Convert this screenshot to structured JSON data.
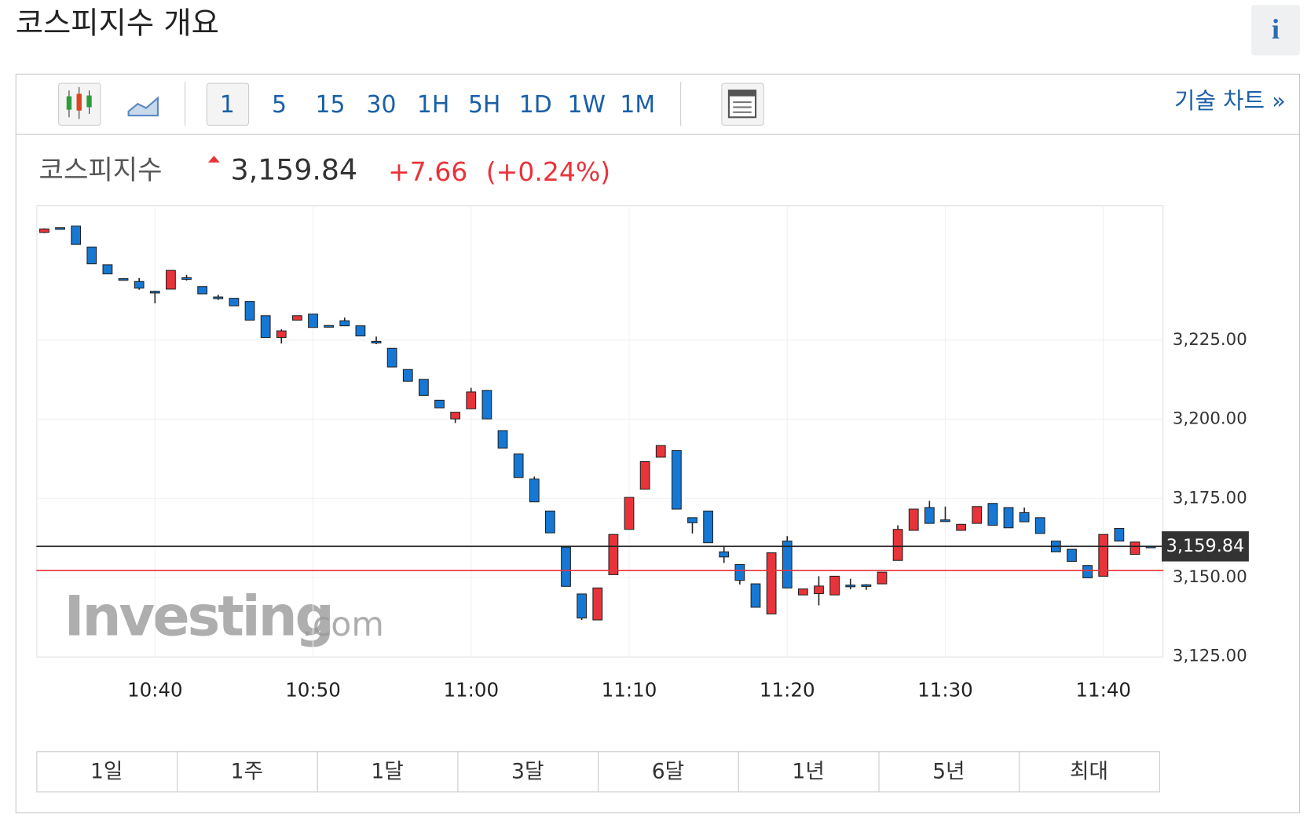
{
  "header": {
    "title": "코스피지수 개요",
    "info": "i"
  },
  "toolbar": {
    "intervals": [
      "1",
      "5",
      "15",
      "30",
      "1H",
      "5H",
      "1D",
      "1W",
      "1M"
    ],
    "tech_chart": "기술 차트 »"
  },
  "quote": {
    "name": "코스피지수",
    "price": "3,159.84",
    "change": "+7.66",
    "change_pct": "(+0.24%)"
  },
  "watermark": {
    "brand": "Investing",
    "domain": ".com"
  },
  "ranges": [
    "1일",
    "1주",
    "1달",
    "3달",
    "6달",
    "1년",
    "5년",
    "최대"
  ],
  "chart_data": {
    "type": "candlestick",
    "x": [
      "10:33",
      "10:34",
      "10:35",
      "10:36",
      "10:37",
      "10:38",
      "10:39",
      "10:40",
      "10:41",
      "10:42",
      "10:43",
      "10:44",
      "10:45",
      "10:46",
      "10:47",
      "10:48",
      "10:49",
      "10:50",
      "10:51",
      "10:52",
      "10:53",
      "10:54",
      "10:55",
      "10:56",
      "10:57",
      "10:58",
      "10:59",
      "11:00",
      "11:01",
      "11:02",
      "11:03",
      "11:04",
      "11:05",
      "11:06",
      "11:07",
      "11:08",
      "11:09",
      "11:10",
      "11:11",
      "11:12",
      "11:13",
      "11:14",
      "11:15",
      "11:16",
      "11:17",
      "11:18",
      "11:19",
      "11:20",
      "11:21",
      "11:22",
      "11:23",
      "11:24",
      "11:25",
      "11:26",
      "11:27",
      "11:28",
      "11:29",
      "11:30",
      "11:31",
      "11:32",
      "11:33",
      "11:34",
      "11:35",
      "11:36",
      "11:37",
      "11:38",
      "11:39",
      "11:40",
      "11:41",
      "11:42",
      "11:43"
    ],
    "open": [
      3259.0,
      3260.5,
      3261.0,
      3254.4,
      3248.8,
      3244.4,
      3243.5,
      3240.4,
      3241.1,
      3244.7,
      3241.9,
      3238.6,
      3238.2,
      3237.2,
      3232.7,
      3225.8,
      3231.3,
      3233.2,
      3229.6,
      3231.1,
      3229.5,
      3224.6,
      3222.4,
      3215.7,
      3212.6,
      3206.0,
      3200.1,
      3203.3,
      3209.1,
      3196.4,
      3189.0,
      3181.1,
      3171.0,
      3159.6,
      3144.8,
      3136.6,
      3150.9,
      3165.2,
      3177.9,
      3188.0,
      3190.1,
      3168.9,
      3171.0,
      3158.1,
      3154.1,
      3148.0,
      3138.5,
      3161.5,
      3144.5,
      3144.9,
      3144.5,
      3147.6,
      3147.7,
      3148.0,
      3155.4,
      3164.9,
      3172.1,
      3168.2,
      3164.9,
      3167.1,
      3173.4,
      3172.1,
      3170.5,
      3168.9,
      3161.5,
      3158.9,
      3153.8,
      3150.4,
      3165.5,
      3157.3,
      3159.9
    ],
    "high": [
      3260.3,
      3260.6,
      3261.0,
      3254.4,
      3248.8,
      3244.5,
      3244.6,
      3240.6,
      3247.0,
      3245.6,
      3241.9,
      3239.3,
      3238.2,
      3237.2,
      3232.7,
      3228.4,
      3232.7,
      3233.2,
      3229.7,
      3232.1,
      3229.5,
      3226.1,
      3222.4,
      3215.7,
      3212.6,
      3206.0,
      3202.2,
      3209.9,
      3209.1,
      3196.4,
      3189.0,
      3181.9,
      3171.0,
      3159.6,
      3144.8,
      3146.7,
      3163.6,
      3175.3,
      3186.6,
      3191.7,
      3190.1,
      3168.9,
      3171.0,
      3159.9,
      3154.1,
      3148.0,
      3157.8,
      3163.1,
      3146.4,
      3150.4,
      3150.4,
      3149.6,
      3147.9,
      3151.7,
      3166.5,
      3171.6,
      3174.2,
      3172.4,
      3166.8,
      3172.4,
      3173.4,
      3172.1,
      3172.1,
      3168.9,
      3161.5,
      3158.9,
      3153.8,
      3163.6,
      3165.5,
      3161.2,
      3159.9
    ],
    "low": [
      3258.8,
      3260.1,
      3255.2,
      3249.1,
      3245.9,
      3244.1,
      3240.9,
      3236.6,
      3241.1,
      3243.8,
      3239.6,
      3237.7,
      3235.8,
      3231.3,
      3225.8,
      3223.9,
      3231.3,
      3229.0,
      3229.3,
      3229.5,
      3226.3,
      3223.7,
      3216.5,
      3212.0,
      3207.5,
      3203.6,
      3198.8,
      3203.3,
      3200.1,
      3190.9,
      3181.6,
      3173.9,
      3164.1,
      3147.2,
      3136.6,
      3136.6,
      3150.9,
      3165.2,
      3177.9,
      3188.0,
      3171.6,
      3163.9,
      3161.0,
      3154.6,
      3147.8,
      3140.6,
      3138.5,
      3146.7,
      3144.5,
      3141.2,
      3144.5,
      3146.3,
      3146.1,
      3148.0,
      3155.4,
      3164.9,
      3167.1,
      3168.0,
      3164.9,
      3167.1,
      3166.5,
      3165.7,
      3167.6,
      3163.9,
      3158.1,
      3155.1,
      3149.9,
      3150.4,
      3161.5,
      3157.3,
      3159.8
    ],
    "close": [
      3260.1,
      3260.2,
      3255.2,
      3249.1,
      3245.9,
      3244.2,
      3241.4,
      3240.2,
      3247.0,
      3244.5,
      3239.6,
      3238.4,
      3235.8,
      3231.3,
      3225.8,
      3227.9,
      3232.7,
      3229.0,
      3229.4,
      3229.5,
      3226.3,
      3224.4,
      3216.5,
      3212.0,
      3207.5,
      3203.6,
      3202.2,
      3208.6,
      3200.1,
      3190.9,
      3181.6,
      3173.9,
      3164.1,
      3147.2,
      3137.2,
      3146.7,
      3163.6,
      3175.3,
      3186.6,
      3191.7,
      3171.6,
      3167.3,
      3161.0,
      3156.5,
      3149.1,
      3140.6,
      3157.8,
      3146.7,
      3146.4,
      3147.3,
      3150.4,
      3147.4,
      3147.5,
      3151.7,
      3165.2,
      3171.6,
      3167.1,
      3168.0,
      3166.8,
      3172.4,
      3166.5,
      3165.7,
      3167.6,
      3163.9,
      3158.1,
      3155.1,
      3149.9,
      3163.6,
      3161.5,
      3161.2,
      3159.84
    ],
    "up_color": "#e9333a",
    "down_color": "#1578d4",
    "last_price": {
      "value": 3159.84,
      "label": "3,159.84"
    },
    "prev_close": 3152.18,
    "ylim": [
      3125,
      3267.6
    ],
    "yticks": [
      {
        "value": 3125,
        "label": "3,125.00"
      },
      {
        "value": 3150,
        "label": "3,150.00"
      },
      {
        "value": 3175,
        "label": "3,175.00"
      },
      {
        "value": 3200,
        "label": "3,200.00"
      },
      {
        "value": 3225,
        "label": "3,225.00"
      }
    ],
    "xlim": [
      "10:32.5",
      "11:43.8"
    ],
    "xticks": [
      "10:40",
      "10:50",
      "11:00",
      "11:10",
      "11:20",
      "11:30",
      "11:40"
    ],
    "grid": true
  }
}
